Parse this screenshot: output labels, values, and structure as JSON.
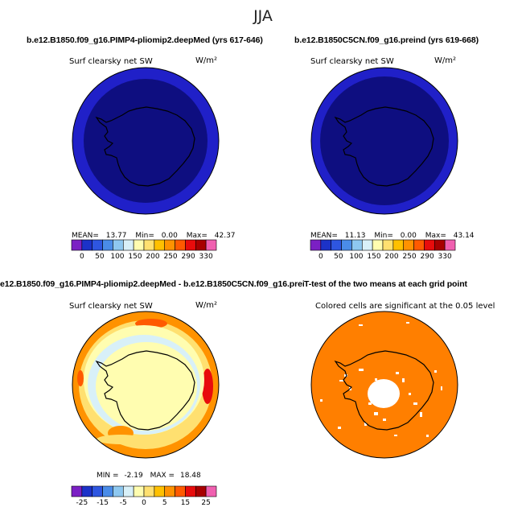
{
  "figure": {
    "title": "JJA"
  },
  "colors": {
    "outer_ring": "#2020c8",
    "inner_disk": "#0e0e80",
    "orange": "#ff7f00",
    "white": "#ffffff"
  },
  "chart_data": [
    {
      "type": "heatmap",
      "projection": "south-polar-stereographic",
      "title": "b.e12.B1850.f09_g16.PIMP4-pliomip2.deepMed (yrs 617-646)",
      "field_label": "Surf clearsky net SW",
      "units": "W/m²",
      "stats": {
        "mean_label": "MEAN=",
        "mean": "13.77",
        "min_label": "Min=",
        "min": "0.00",
        "max_label": "Max=",
        "max": "42.37"
      },
      "colorbar": {
        "colors": [
          "#7b20c4",
          "#1c32c8",
          "#2e56e0",
          "#4a8ce8",
          "#8ec8f0",
          "#d8f0f8",
          "#fffdb0",
          "#ffe070",
          "#ffc000",
          "#ff9200",
          "#ff5a00",
          "#e80c0c",
          "#a80000",
          "#f060b0"
        ],
        "tick_labels": [
          "0",
          "50",
          "100",
          "150",
          "200",
          "250",
          "290",
          "330"
        ]
      }
    },
    {
      "type": "heatmap",
      "projection": "south-polar-stereographic",
      "title": "b.e12.B1850C5CN.f09_g16.preind (yrs 619-668)",
      "field_label": "Surf clearsky net SW",
      "units": "W/m²",
      "stats": {
        "mean_label": "MEAN=",
        "mean": "11.13",
        "min_label": "Min=",
        "min": "0.00",
        "max_label": "Max=",
        "max": "43.14"
      },
      "colorbar": {
        "colors": [
          "#7b20c4",
          "#1c32c8",
          "#2e56e0",
          "#4a8ce8",
          "#8ec8f0",
          "#d8f0f8",
          "#fffdb0",
          "#ffe070",
          "#ffc000",
          "#ff9200",
          "#ff5a00",
          "#e80c0c",
          "#a80000",
          "#f060b0"
        ],
        "tick_labels": [
          "0",
          "50",
          "100",
          "150",
          "200",
          "250",
          "290",
          "330"
        ]
      }
    },
    {
      "type": "heatmap",
      "projection": "south-polar-stereographic",
      "title": "e12.B1850.f09_g16.PIMP4-pliomip2.deepMed - b.e12.B1850C5CN.f09_g16.preind",
      "field_label": "Surf clearsky net SW",
      "units": "W/m²",
      "stats": {
        "min_label": "MIN =",
        "min": "-2.19",
        "max_label": "MAX =",
        "max": "18.48"
      },
      "colorbar": {
        "colors": [
          "#7b20c4",
          "#1c32c8",
          "#2e56e0",
          "#4a8ce8",
          "#8ec8f0",
          "#d8f0f8",
          "#fffdb0",
          "#ffe070",
          "#ffc000",
          "#ff9200",
          "#ff5a00",
          "#e80c0c",
          "#a80000",
          "#f060b0"
        ],
        "tick_labels": [
          "-25",
          "-15",
          "-5",
          "0",
          "5",
          "15",
          "25"
        ]
      }
    },
    {
      "type": "heatmap",
      "projection": "south-polar-stereographic",
      "title": "T-test of the two means at each grid point",
      "field_label": "Colored cells are significant at the 0.05 level",
      "significance_level": 0.05
    }
  ]
}
